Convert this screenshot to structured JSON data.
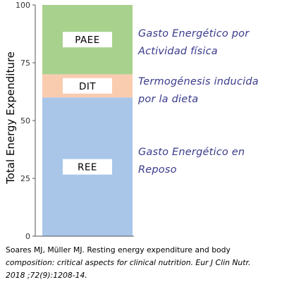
{
  "chart_data": {
    "type": "bar",
    "stacked": true,
    "categories": [
      ""
    ],
    "ylabel": "Total Energy Expenditure",
    "xlabel": "",
    "title": "",
    "ylim": [
      0,
      100
    ],
    "yticks": [
      "0",
      "25",
      "50",
      "75",
      "100"
    ],
    "grid": false,
    "series": [
      {
        "name": "REE",
        "start": 0,
        "end": 60,
        "values": [
          60
        ],
        "color": "#a9c6e9",
        "annotation": [
          "Gasto Energético en",
          "Reposo"
        ]
      },
      {
        "name": "DIT",
        "start": 60,
        "end": 70,
        "values": [
          10
        ],
        "color": "#f9ccb0",
        "annotation": [
          "Termogénesis inducida",
          "por la dieta"
        ]
      },
      {
        "name": "PAEE",
        "start": 70,
        "end": 100,
        "values": [
          30
        ],
        "color": "#a8d18d",
        "annotation": [
          "Gasto Energético por",
          "Actividad física"
        ]
      }
    ],
    "annotation_color": "#3a3a8c"
  },
  "citation": {
    "line1": "Soares MJ, Müller MJ. Resting energy expenditure and body",
    "line2": "composition: critical aspects for clinical nutrition. Eur J Clin Nutr.",
    "line3": "2018 ;72(9):1208-14."
  }
}
